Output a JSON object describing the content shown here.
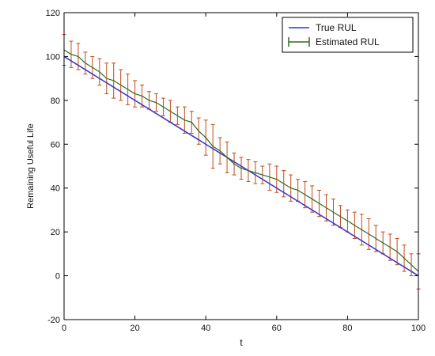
{
  "chart_data": {
    "type": "line",
    "title": "",
    "xlabel": "t",
    "ylabel": "Remaining Useful Life",
    "xlim": [
      0,
      100
    ],
    "ylim": [
      -20,
      120
    ],
    "xticks": [
      0,
      20,
      40,
      60,
      80,
      100
    ],
    "yticks": [
      -20,
      0,
      20,
      40,
      60,
      80,
      100,
      120
    ],
    "grid": false,
    "legend": {
      "placement": "top-right",
      "entries": [
        "True RUL",
        "Estimated RUL"
      ]
    },
    "colors": {
      "true_rul": "#3333cc",
      "estimated_line": "#2e6b1f",
      "error_bar": "#c24a1a"
    },
    "series": [
      {
        "name": "True RUL",
        "kind": "line",
        "x": [
          0,
          100
        ],
        "y": [
          100,
          0
        ]
      },
      {
        "name": "Estimated RUL",
        "kind": "errorbar",
        "x": [
          0,
          2,
          4,
          6,
          8,
          10,
          12,
          14,
          16,
          18,
          20,
          22,
          24,
          26,
          28,
          30,
          32,
          34,
          36,
          38,
          40,
          42,
          44,
          46,
          48,
          50,
          52,
          54,
          56,
          58,
          60,
          62,
          64,
          66,
          68,
          70,
          72,
          74,
          76,
          78,
          80,
          82,
          84,
          86,
          88,
          90,
          92,
          94,
          96,
          98,
          100
        ],
        "y": [
          103,
          101,
          100,
          97,
          95,
          93,
          90,
          89,
          87,
          85,
          83,
          82,
          80,
          79,
          77,
          75,
          73,
          71,
          70,
          66,
          63,
          59,
          57,
          54,
          51,
          49,
          48,
          47,
          46,
          45,
          44,
          42,
          40,
          39,
          37,
          35,
          33,
          31,
          29,
          27,
          25,
          23,
          21,
          19,
          17,
          15,
          13,
          11,
          8,
          5,
          2
        ],
        "err": [
          7,
          6,
          6,
          5,
          5,
          6,
          7,
          8,
          7,
          7,
          6,
          5,
          4,
          4,
          4,
          5,
          4,
          6,
          5,
          6,
          8,
          10,
          6,
          7,
          5,
          5,
          5,
          5,
          4,
          6,
          6,
          6,
          6,
          5,
          6,
          6,
          6,
          6,
          6,
          5,
          5,
          6,
          7,
          7,
          6,
          5,
          6,
          6,
          6,
          5,
          8
        ]
      }
    ]
  }
}
